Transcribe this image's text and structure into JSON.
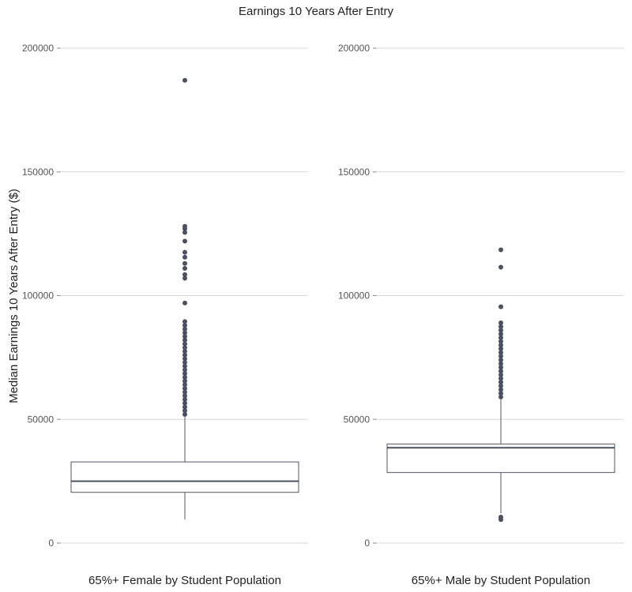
{
  "chart_data": {
    "type": "box",
    "title": "Earnings 10 Years After Entry",
    "ylabel": "Median Earnings 10 Years After Entry ($)",
    "ylim": [
      0,
      200000
    ],
    "yticks": [
      0,
      50000,
      100000,
      150000,
      200000
    ],
    "grid": true,
    "colors": {
      "box_line": "#555566",
      "median_line": "#4a5260",
      "outlier": "#4a5060",
      "grid": "#d9d9d9",
      "tick": "#888888"
    },
    "series": [
      {
        "name": "65%+ Female by Student Population",
        "whisker_low": 9500,
        "q1": 20500,
        "median": 25000,
        "q3": 32800,
        "whisker_high": 51000,
        "outliers": [
          52000,
          53500,
          55000,
          56500,
          58000,
          59500,
          61000,
          62500,
          64000,
          65500,
          67000,
          68500,
          70000,
          71500,
          73000,
          74500,
          76000,
          77500,
          79000,
          80500,
          82000,
          83500,
          85000,
          86500,
          88000,
          89500,
          97000,
          107000,
          108500,
          111000,
          113000,
          115500,
          117500,
          122000,
          125500,
          127000,
          128000,
          187000
        ]
      },
      {
        "name": "65%+ Male by Student Population",
        "whisker_low": 12000,
        "q1": 28500,
        "median": 38500,
        "q3": 40000,
        "whisker_high": 58000,
        "outliers": [
          9500,
          10500,
          59000,
          60500,
          62000,
          63500,
          65000,
          66500,
          68000,
          69500,
          71000,
          72500,
          74000,
          75500,
          77000,
          78500,
          80000,
          81500,
          83000,
          84500,
          86000,
          87500,
          89000,
          95500,
          111500,
          118500
        ]
      }
    ]
  }
}
